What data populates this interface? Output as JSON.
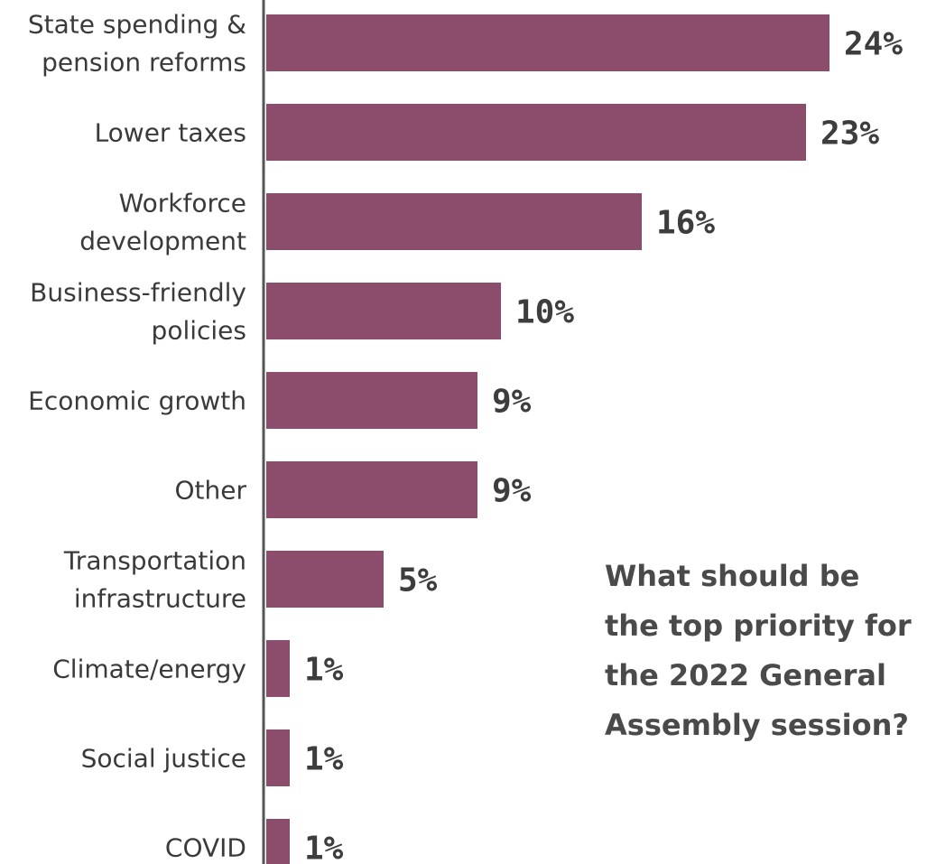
{
  "chart_data": {
    "type": "bar",
    "orientation": "horizontal",
    "title": "What should be the top priority for the 2022 General Assembly session?",
    "title_lines": [
      "What should be",
      "the top priority for",
      "the 2022 General",
      "Assembly session?"
    ],
    "categories": [
      [
        "State spending &",
        "pension reforms"
      ],
      [
        "Lower taxes"
      ],
      [
        "Workforce",
        "development"
      ],
      [
        "Business-friendly",
        "policies"
      ],
      [
        "Economic growth"
      ],
      [
        "Other"
      ],
      [
        "Transportation",
        "infrastructure"
      ],
      [
        "Climate/energy"
      ],
      [
        "Social justice"
      ],
      [
        "COVID"
      ]
    ],
    "values": [
      24,
      23,
      16,
      10,
      9,
      9,
      5,
      1,
      1,
      1
    ],
    "value_labels": [
      "24%",
      "23%",
      "16%",
      "10%",
      "9%",
      "9%",
      "5%",
      "1%",
      "1%",
      "1%"
    ],
    "xlim": [
      0,
      24
    ],
    "grid": false,
    "legend": "none",
    "colors": {
      "bar": "#8b4d6b",
      "axis": "#555555",
      "text": "#3a3a3a",
      "value_text": "#3d3d3d",
      "question_text": "#4a4a4a"
    }
  }
}
